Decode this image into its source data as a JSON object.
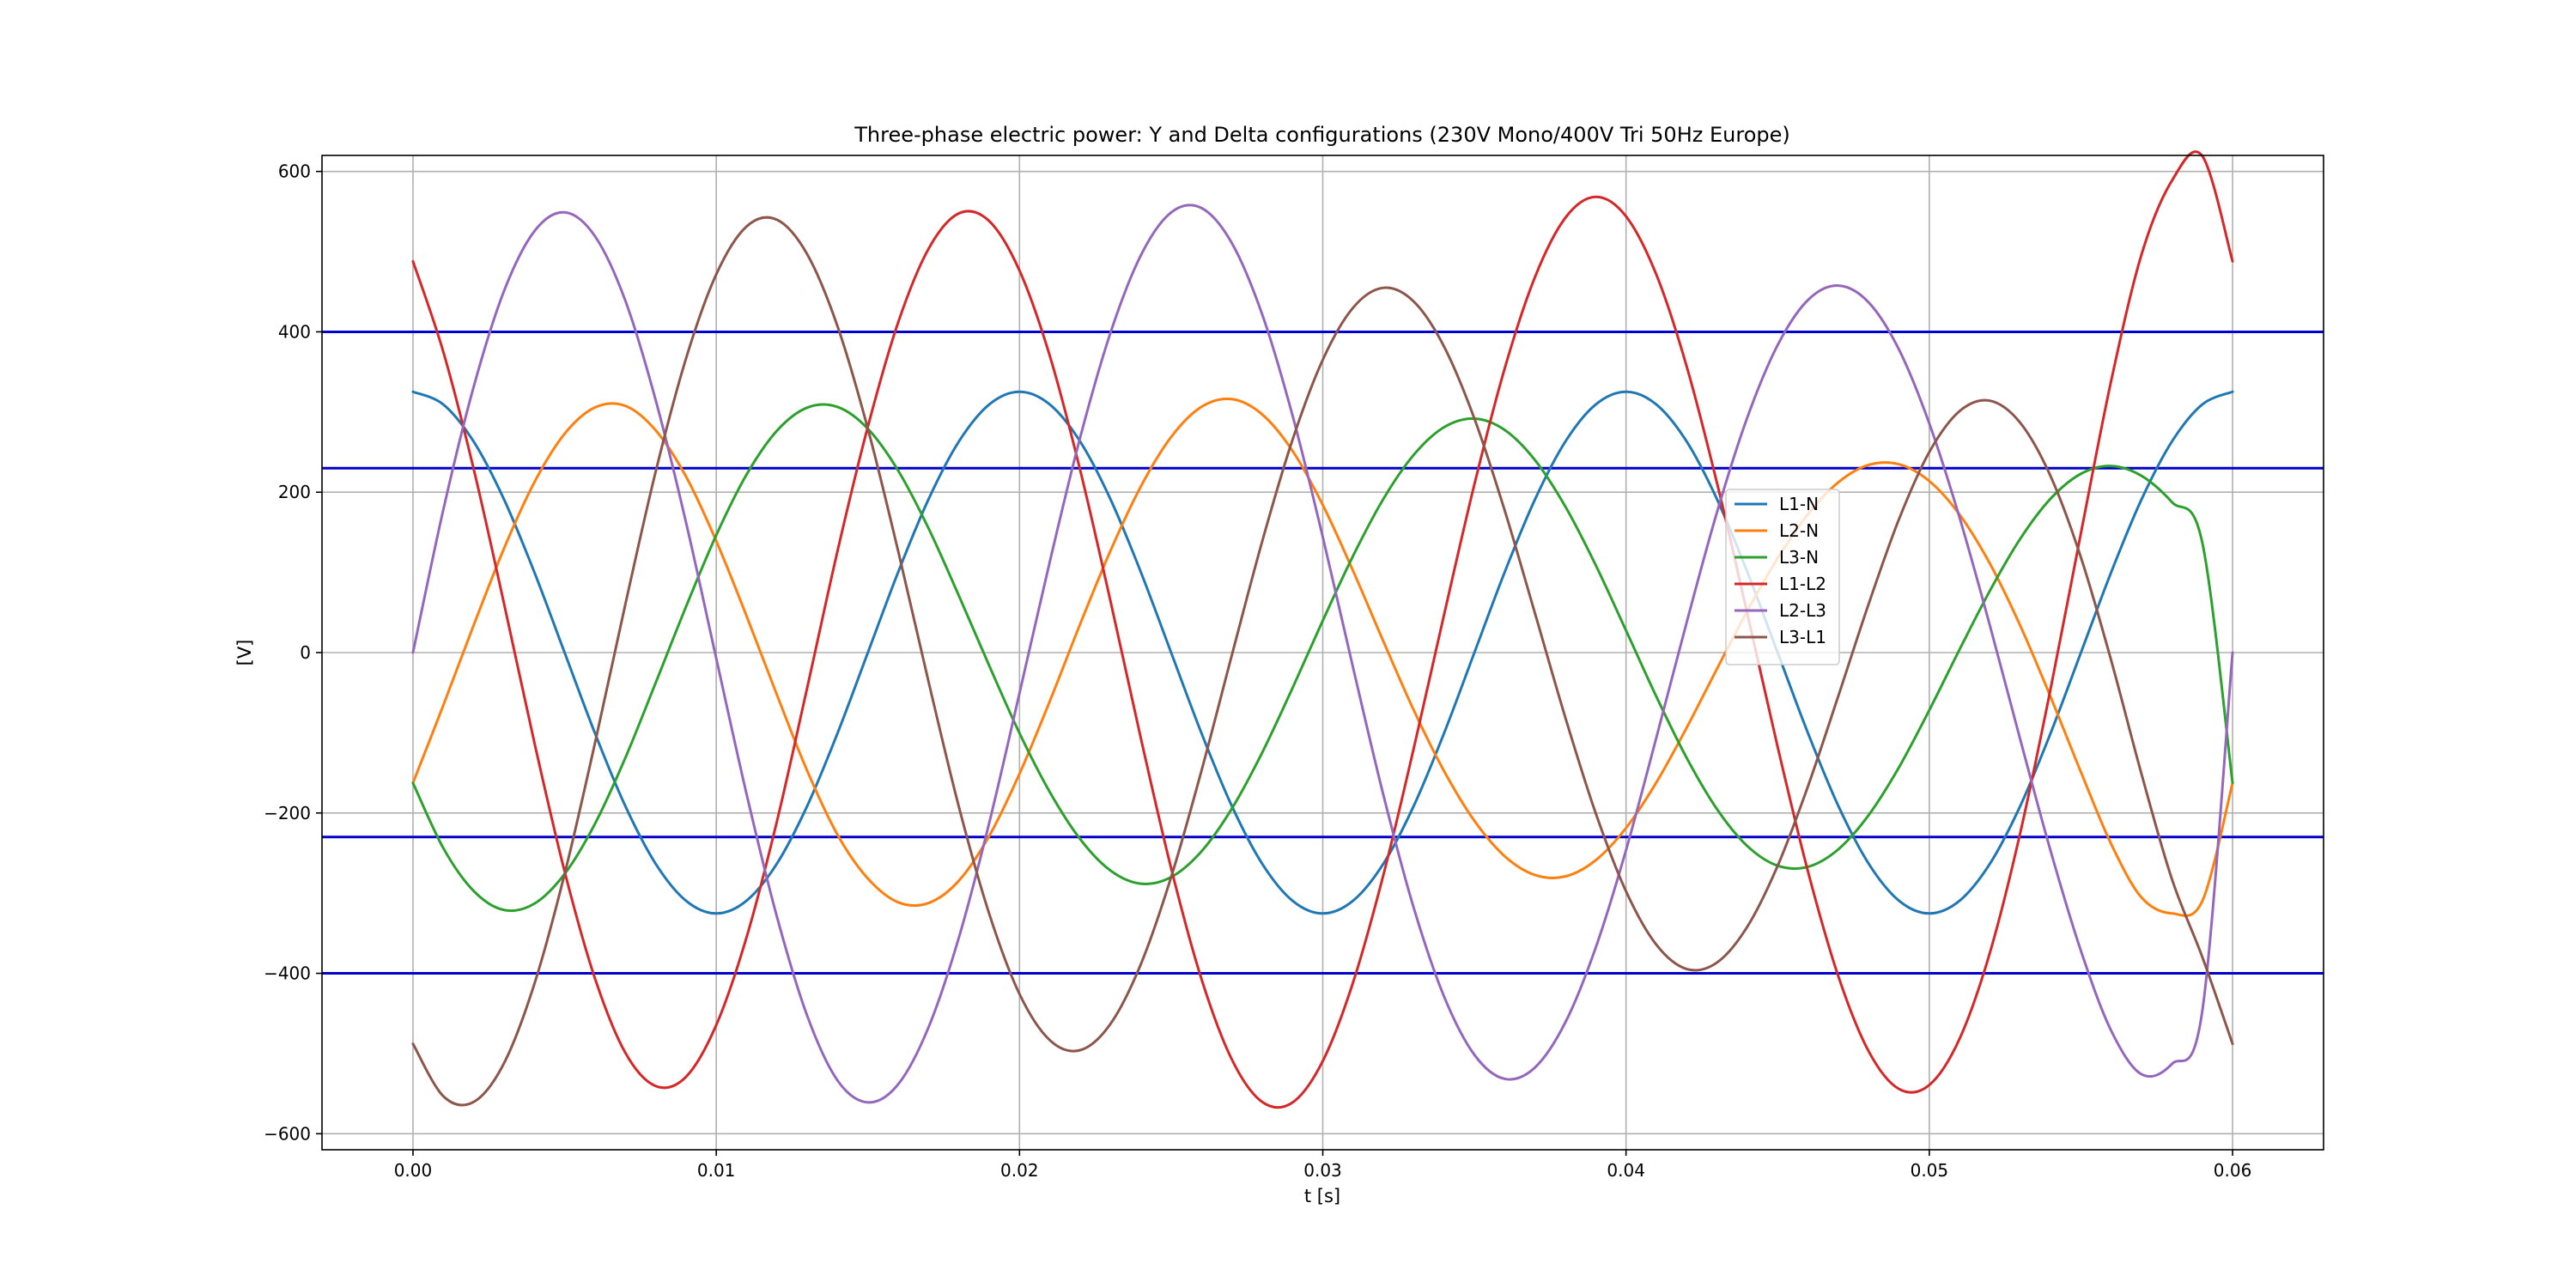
{
  "chart_data": {
    "type": "line",
    "title": "Three-phase electric power: Y and Delta configurations (230V Mono/400V Tri 50Hz Europe)",
    "xlabel": "t [s]",
    "ylabel": "[V]",
    "xlim": [
      -0.003,
      0.063
    ],
    "ylim": [
      -620,
      620
    ],
    "x_ticks": [
      0.0,
      0.01,
      0.02,
      0.03,
      0.04,
      0.05,
      0.06
    ],
    "x_tick_labels": [
      "0.00",
      "0.01",
      "0.02",
      "0.03",
      "0.04",
      "0.05",
      "0.06"
    ],
    "y_ticks": [
      -600,
      -400,
      -200,
      0,
      200,
      400,
      600
    ],
    "y_tick_labels": [
      "−600",
      "−400",
      "−200",
      "0",
      "200",
      "400",
      "600"
    ],
    "grid": true,
    "legend_position": "center-right",
    "x": [
      0.0,
      0.001,
      0.002,
      0.003,
      0.004,
      0.005,
      0.006,
      0.007,
      0.008,
      0.009,
      0.01,
      0.011,
      0.012,
      0.013,
      0.014,
      0.015,
      0.016,
      0.017,
      0.018,
      0.019,
      0.02,
      0.021,
      0.022,
      0.023,
      0.024,
      0.025,
      0.026,
      0.027,
      0.028,
      0.029,
      0.03,
      0.031,
      0.032,
      0.033,
      0.034,
      0.035,
      0.036,
      0.037,
      0.038,
      0.039,
      0.04,
      0.041,
      0.042,
      0.043,
      0.044,
      0.045,
      0.046,
      0.047,
      0.048,
      0.049,
      0.05,
      0.051,
      0.052,
      0.053,
      0.054,
      0.055,
      0.056,
      0.057,
      0.058,
      0.059,
      0.06
    ],
    "series": [
      {
        "name": "L1-N",
        "color": "#1f77b4",
        "values": [
          325.3,
          309.4,
          263.2,
          191.2,
          100.5,
          0.0,
          -100.5,
          -191.2,
          -263.2,
          -309.4,
          -325.3,
          -309.4,
          -263.2,
          -191.2,
          -100.5,
          0.0,
          100.5,
          191.2,
          263.2,
          309.4,
          325.3,
          309.4,
          263.2,
          191.2,
          100.5,
          0.0,
          -100.5,
          -191.2,
          -263.2,
          -309.4,
          -325.3,
          -309.4,
          -263.2,
          -191.2,
          -100.5,
          0.0,
          100.5,
          191.2,
          263.2,
          309.4,
          325.3,
          309.4,
          263.2,
          191.2,
          100.5,
          0.0,
          -100.5,
          -191.2,
          -263.2,
          -309.4,
          -325.3,
          -309.4,
          -263.2,
          -191.2,
          -100.5,
          0.0,
          100.5,
          191.2,
          263.2,
          309.4,
          325.3
        ]
      },
      {
        "name": "L2-N",
        "color": "#ff7f0e",
        "values": [
          -162.6,
          -65.7,
          34.0,
          129.7,
          212.2,
          272.9,
          305.7,
          307.7,
          277.3,
          219.8,
          139.2,
          45.6,
          -52.6,
          -147.5,
          -227.3,
          -281.8,
          -311.4,
          -312.3,
          -284.5,
          -228.8,
          -151.1,
          -60.5,
          35.6,
          127.0,
          207.1,
          268.9,
          306.5,
          316.1,
          297.1,
          251.7,
          184.1,
          101.8,
          13.9,
          -71.8,
          -147.8,
          -209.8,
          -254.0,
          -277.4,
          -279.1,
          -258.9,
          -218.7,
          -161.9,
          -93.6,
          -20.1,
          52.0,
          117.7,
          172.6,
          212.4,
          234.0,
          234.8,
          213.9,
          172.0,
          110.8,
          33.5,
          -55.3,
          -149.0,
          -239.0,
          -305.5,
          -325.3,
          -310.0,
          -162.6
        ]
      },
      {
        "name": "L3-N",
        "color": "#2ca02c",
        "values": [
          -162.6,
          -243.8,
          -297.2,
          -321.0,
          -313.1,
          -276.1,
          -213.6,
          -131.5,
          -38.0,
          56.9,
          146.4,
          222.0,
          276.6,
          305.5,
          306.3,
          279.1,
          226.9,
          155.0,
          71.0,
          -16.2,
          -100.5,
          -174.0,
          -232.6,
          -271.8,
          -288.2,
          -280.0,
          -247.9,
          -194.7,
          -124.9,
          -44.4,
          39.9,
          120.7,
          191.7,
          246.6,
          281.1,
          291.8,
          277.6,
          239.9,
          182.0,
          109.1,
          27.6,
          -54.9,
          -131.4,
          -195.3,
          -241.3,
          -265.8,
          -267.1,
          -245.3,
          -202.7,
          -143.1,
          -71.8,
          4.0,
          77.3,
          142.0,
          192.0,
          223.0,
          232.7,
          220.4,
          187.7,
          137.5,
          -162.6
        ]
      },
      {
        "name": "L1-L2",
        "color": "#d62728",
        "values": [
          487.9,
          375.1,
          229.2,
          61.5,
          -111.7,
          -272.9,
          -406.2,
          -498.9,
          -540.5,
          -529.2,
          -464.5,
          -355.0,
          -210.6,
          -43.7,
          126.8,
          281.8,
          411.9,
          503.5,
          547.7,
          538.2,
          476.4,
          369.9,
          227.6,
          64.2,
          -106.6,
          -268.9,
          -407.0,
          -507.3,
          -560.3,
          -561.1,
          -509.4,
          -411.2,
          -277.1,
          -119.4,
          47.3,
          209.8,
          354.5,
          468.6,
          542.3,
          568.3,
          544.0,
          471.3,
          356.8,
          211.3,
          48.5,
          -117.7,
          -273.1,
          -403.6,
          -497.2,
          -544.2,
          -539.2,
          -481.4,
          -374.0,
          -224.7,
          -45.2,
          149.0,
          339.5,
          496.7,
          588.5,
          619.4,
          487.9
        ]
      },
      {
        "name": "L2-L3",
        "color": "#9467bd",
        "values": [
          0.0,
          178.1,
          331.2,
          450.7,
          525.3,
          549.0,
          519.3,
          439.2,
          315.3,
          162.9,
          -7.2,
          -176.4,
          -329.2,
          -453.0,
          -533.6,
          -560.9,
          -538.3,
          -467.3,
          -355.5,
          -212.6,
          -50.6,
          113.5,
          268.2,
          398.8,
          495.3,
          548.9,
          554.4,
          510.8,
          422.0,
          296.1,
          144.2,
          -18.9,
          -177.8,
          -318.4,
          -428.9,
          -501.6,
          -531.6,
          -517.3,
          -461.1,
          -368.0,
          -246.3,
          -106.0,
          37.8,
          175.2,
          293.3,
          383.5,
          439.7,
          457.7,
          436.7,
          377.9,
          285.7,
          168.0,
          33.5,
          -108.5,
          -247.3,
          -372.0,
          -471.7,
          -525.9,
          -513.0,
          -447.5,
          0.0
        ]
      },
      {
        "name": "L3-L1",
        "color": "#8c564b",
        "values": [
          -487.9,
          -553.2,
          -560.4,
          -512.2,
          -413.6,
          -276.1,
          -113.1,
          59.7,
          225.2,
          366.3,
          471.7,
          531.4,
          539.8,
          496.7,
          406.8,
          279.1,
          126.4,
          -36.2,
          -192.2,
          -325.6,
          -425.8,
          -483.4,
          -495.8,
          -463.0,
          -388.7,
          -280.0,
          -147.4,
          -3.5,
          138.3,
          265.0,
          365.2,
          430.1,
          454.9,
          437.8,
          381.6,
          291.8,
          177.1,
          48.7,
          -81.2,
          -200.3,
          -297.7,
          -364.3,
          -394.6,
          -386.5,
          -341.8,
          -265.8,
          -166.6,
          -54.1,
          60.6,
          166.3,
          250.1,
          301.2,
          314.1,
          286.5,
          219.9,
          118.6,
          -10.1,
          -151.8,
          -282.5,
          -379.5,
          -487.9
        ]
      }
    ],
    "hlines": {
      "color": "#0000cc",
      "values": [
        400,
        230,
        -230,
        -400
      ]
    }
  }
}
